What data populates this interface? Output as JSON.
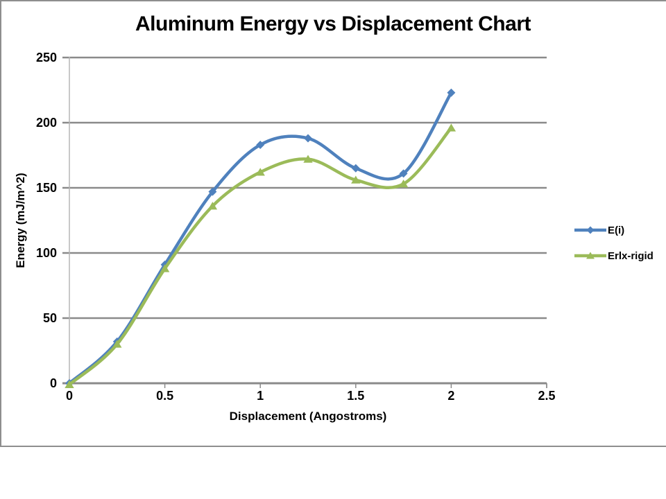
{
  "window": {
    "background": "#FFFFFF",
    "border_color": "#8E8E8E"
  },
  "chart_data": {
    "type": "line",
    "title": "Aluminum Energy vs Displacement Chart",
    "xlabel": "Displacement (Angostroms)",
    "ylabel": "Energy (mJ/m^2)",
    "x": [
      0,
      0.25,
      0.5,
      0.75,
      1,
      1.25,
      1.5,
      1.75,
      2
    ],
    "series": [
      {
        "name": "E(i)",
        "color": "#4F81BD",
        "marker": "diamond",
        "values": [
          0,
          32,
          91,
          147,
          183,
          188,
          165,
          161,
          223
        ]
      },
      {
        "name": "Erlx-rigid",
        "color": "#9BBB59",
        "marker": "triangle",
        "values": [
          -1,
          30,
          88,
          136,
          162,
          172,
          156,
          153,
          196
        ]
      }
    ],
    "xlim": [
      0,
      2.5
    ],
    "ylim": [
      0,
      250
    ],
    "xticks": [
      0,
      0.5,
      1,
      1.5,
      2,
      2.5
    ],
    "xtick_labels": [
      "0",
      "0.5",
      "1",
      "1.5",
      "2",
      "2.5"
    ],
    "yticks": [
      0,
      50,
      100,
      150,
      200,
      250
    ],
    "ytick_labels": [
      "0",
      "50",
      "100",
      "150",
      "200",
      "250"
    ],
    "grid": "horizontal-only",
    "gridline_color": "#8A8A8A",
    "axis_line_color": "#B5B5B5",
    "text_color": "#000000",
    "line_style": "smooth",
    "legend_position": "right"
  }
}
